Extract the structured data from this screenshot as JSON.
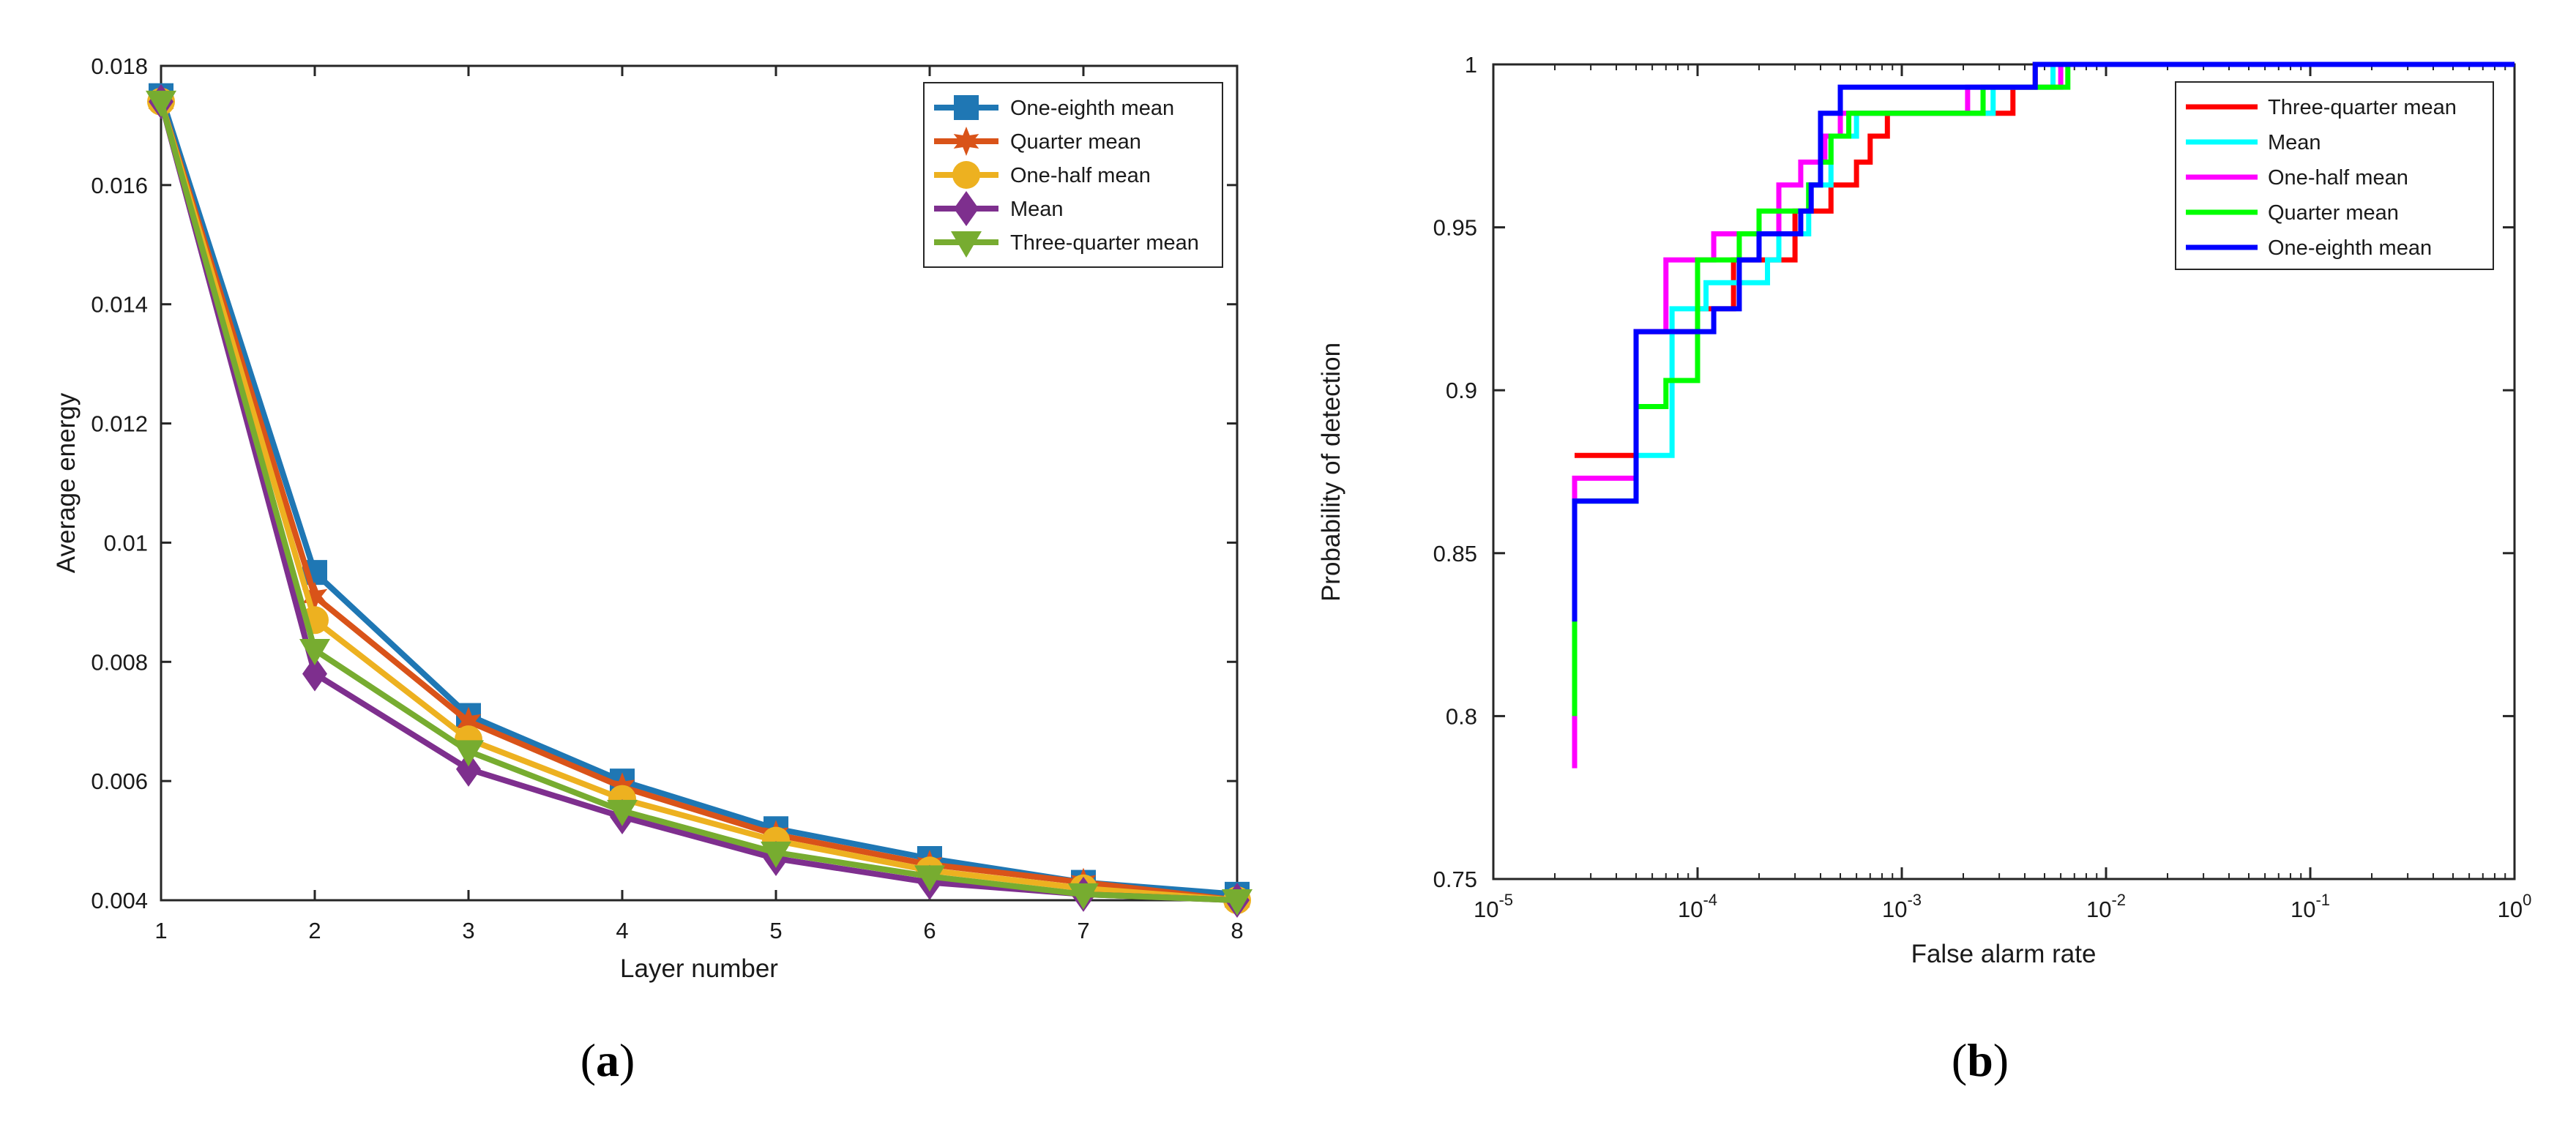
{
  "chart_data": [
    {
      "type": "line",
      "caption_letter": "a",
      "xlabel": "Layer number",
      "ylabel": "Average energy",
      "xlim": [
        1,
        8
      ],
      "ylim": [
        0.004,
        0.018
      ],
      "x_ticks": [
        "1",
        "2",
        "3",
        "4",
        "5",
        "6",
        "7",
        "8"
      ],
      "y_ticks": [
        "0.004",
        "0.006",
        "0.008",
        "0.01",
        "0.012",
        "0.014",
        "0.016",
        "0.018"
      ],
      "legend_position": "top-right",
      "x": [
        1,
        2,
        3,
        4,
        5,
        6,
        7,
        8
      ],
      "series": [
        {
          "name": "One-eighth mean",
          "color": "#1f77b4",
          "marker": "square",
          "values": [
            0.0175,
            0.0095,
            0.0071,
            0.006,
            0.0052,
            0.0047,
            0.0043,
            0.0041
          ]
        },
        {
          "name": "Quarter mean",
          "color": "#d95319",
          "marker": "star",
          "values": [
            0.0174,
            0.0091,
            0.007,
            0.0059,
            0.0051,
            0.0046,
            0.0043,
            0.004
          ]
        },
        {
          "name": "One-half mean",
          "color": "#edb120",
          "marker": "circle",
          "values": [
            0.0174,
            0.0087,
            0.0067,
            0.0057,
            0.005,
            0.0045,
            0.0042,
            0.004
          ]
        },
        {
          "name": "Mean",
          "color": "#7e2f8e",
          "marker": "diamond",
          "values": [
            0.0174,
            0.0078,
            0.0062,
            0.0054,
            0.0047,
            0.0043,
            0.0041,
            0.004
          ]
        },
        {
          "name": "Three-quarter mean",
          "color": "#77ac30",
          "marker": "triangle",
          "values": [
            0.0174,
            0.0082,
            0.0065,
            0.0055,
            0.0048,
            0.0044,
            0.0041,
            0.004
          ]
        }
      ]
    },
    {
      "type": "line",
      "caption_letter": "b",
      "xlabel": "False alarm rate",
      "ylabel": "Probability of detection",
      "xscale": "log",
      "xlim": [
        1e-05,
        1
      ],
      "ylim": [
        0.75,
        1
      ],
      "x_ticks": [
        {
          "base": "10",
          "exp": "-5"
        },
        {
          "base": "10",
          "exp": "-4"
        },
        {
          "base": "10",
          "exp": "-3"
        },
        {
          "base": "10",
          "exp": "-2"
        },
        {
          "base": "10",
          "exp": "-1"
        },
        {
          "base": "10",
          "exp": "0"
        }
      ],
      "y_ticks": [
        "0.75",
        "0.8",
        "0.85",
        "0.9",
        "0.95",
        "1"
      ],
      "legend_position": "top-right",
      "series": [
        {
          "name": "Three-quarter mean",
          "color": "#ff0000",
          "points": [
            [
              2.5e-05,
              0.88
            ],
            [
              5e-05,
              0.88
            ],
            [
              5e-05,
              0.918
            ],
            [
              0.0001,
              0.918
            ],
            [
              0.0001,
              0.925
            ],
            [
              0.00015,
              0.925
            ],
            [
              0.00015,
              0.94
            ],
            [
              0.0003,
              0.94
            ],
            [
              0.0003,
              0.955
            ],
            [
              0.00045,
              0.955
            ],
            [
              0.00045,
              0.963
            ],
            [
              0.0006,
              0.963
            ],
            [
              0.0006,
              0.97
            ],
            [
              0.0007,
              0.97
            ],
            [
              0.0007,
              0.978
            ],
            [
              0.00085,
              0.978
            ],
            [
              0.00085,
              0.985
            ],
            [
              0.0035,
              0.985
            ],
            [
              0.0035,
              0.993
            ],
            [
              0.0045,
              0.993
            ],
            [
              0.0045,
              1
            ],
            [
              1,
              1
            ]
          ]
        },
        {
          "name": "Mean",
          "color": "#00ffff",
          "points": [
            [
              2.5e-05,
              0.866
            ],
            [
              5e-05,
              0.866
            ],
            [
              5e-05,
              0.88
            ],
            [
              7.5e-05,
              0.88
            ],
            [
              7.5e-05,
              0.925
            ],
            [
              0.00011,
              0.925
            ],
            [
              0.00011,
              0.933
            ],
            [
              0.00022,
              0.933
            ],
            [
              0.00022,
              0.94
            ],
            [
              0.00025,
              0.94
            ],
            [
              0.00025,
              0.948
            ],
            [
              0.00035,
              0.948
            ],
            [
              0.00035,
              0.963
            ],
            [
              0.00045,
              0.963
            ],
            [
              0.00045,
              0.978
            ],
            [
              0.0006,
              0.978
            ],
            [
              0.0006,
              0.985
            ],
            [
              0.0028,
              0.985
            ],
            [
              0.0028,
              0.993
            ],
            [
              0.0055,
              0.993
            ],
            [
              0.0055,
              1
            ],
            [
              1,
              1
            ]
          ]
        },
        {
          "name": "One-half mean",
          "color": "#ff00ff",
          "points": [
            [
              2.5e-05,
              0.784
            ],
            [
              2.5e-05,
              0.873
            ],
            [
              5e-05,
              0.873
            ],
            [
              5e-05,
              0.918
            ],
            [
              7e-05,
              0.918
            ],
            [
              7e-05,
              0.94
            ],
            [
              0.0001,
              0.94
            ],
            [
              0.0001,
              0.94
            ],
            [
              0.00012,
              0.94
            ],
            [
              0.00012,
              0.948
            ],
            [
              0.00025,
              0.948
            ],
            [
              0.00025,
              0.963
            ],
            [
              0.00032,
              0.963
            ],
            [
              0.00032,
              0.97
            ],
            [
              0.00042,
              0.97
            ],
            [
              0.00042,
              0.978
            ],
            [
              0.0005,
              0.978
            ],
            [
              0.0005,
              0.985
            ],
            [
              0.0021,
              0.985
            ],
            [
              0.0021,
              0.993
            ],
            [
              0.006,
              0.993
            ],
            [
              0.006,
              1
            ],
            [
              1,
              1
            ]
          ]
        },
        {
          "name": "Quarter mean",
          "color": "#00ff00",
          "points": [
            [
              2.5e-05,
              0.8
            ],
            [
              2.5e-05,
              0.866
            ],
            [
              5e-05,
              0.866
            ],
            [
              5e-05,
              0.895
            ],
            [
              7e-05,
              0.895
            ],
            [
              7e-05,
              0.903
            ],
            [
              0.0001,
              0.903
            ],
            [
              0.0001,
              0.94
            ],
            [
              0.00016,
              0.94
            ],
            [
              0.00016,
              0.948
            ],
            [
              0.0002,
              0.948
            ],
            [
              0.0002,
              0.955
            ],
            [
              0.00035,
              0.955
            ],
            [
              0.00035,
              0.963
            ],
            [
              0.0004,
              0.963
            ],
            [
              0.0004,
              0.97
            ],
            [
              0.00045,
              0.97
            ],
            [
              0.00045,
              0.978
            ],
            [
              0.00055,
              0.978
            ],
            [
              0.00055,
              0.985
            ],
            [
              0.0025,
              0.985
            ],
            [
              0.0025,
              0.993
            ],
            [
              0.0065,
              0.993
            ],
            [
              0.0065,
              1
            ],
            [
              1,
              1
            ]
          ]
        },
        {
          "name": "One-eighth mean",
          "color": "#0000ff",
          "points": [
            [
              2.5e-05,
              0.829
            ],
            [
              2.5e-05,
              0.866
            ],
            [
              5e-05,
              0.866
            ],
            [
              5e-05,
              0.918
            ],
            [
              0.00012,
              0.918
            ],
            [
              0.00012,
              0.925
            ],
            [
              0.00016,
              0.925
            ],
            [
              0.00016,
              0.94
            ],
            [
              0.0002,
              0.94
            ],
            [
              0.0002,
              0.948
            ],
            [
              0.00032,
              0.948
            ],
            [
              0.00032,
              0.955
            ],
            [
              0.00036,
              0.955
            ],
            [
              0.00036,
              0.963
            ],
            [
              0.0004,
              0.963
            ],
            [
              0.0004,
              0.985
            ],
            [
              0.0005,
              0.985
            ],
            [
              0.0005,
              0.993
            ],
            [
              0.0045,
              0.993
            ],
            [
              0.0045,
              1
            ],
            [
              1,
              1
            ]
          ]
        }
      ]
    }
  ]
}
